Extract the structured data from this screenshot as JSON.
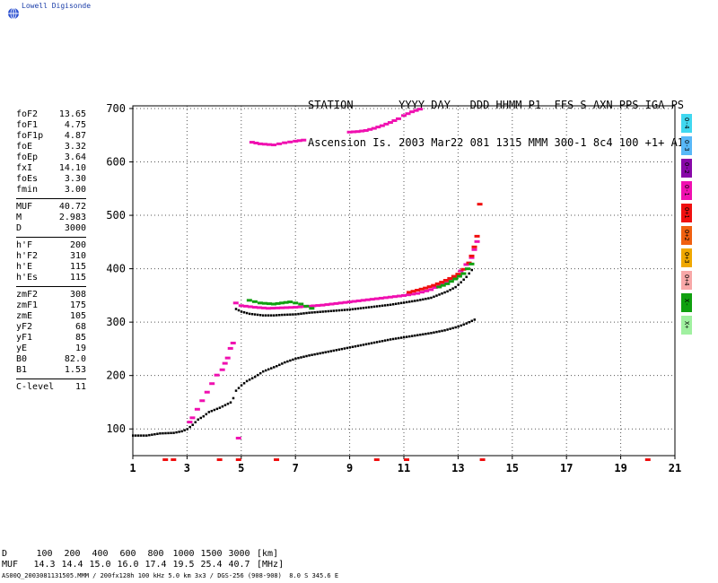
{
  "logo": {
    "text": "Lowell Digisonde"
  },
  "header": {
    "line1": "STATION       YYYY DAY   DDD HHMM P1  FFS S AXN PPS IGA PS",
    "line2": "Ascension Is. 2003 Mar22 081 1315 MMM 300-1 8c4 100 +1+ A1"
  },
  "params": {
    "groups": [
      [
        [
          "foF2",
          "13.65"
        ],
        [
          "foF1",
          "4.75"
        ],
        [
          "foF1p",
          "4.87"
        ],
        [
          "foE",
          "3.32"
        ],
        [
          "foEp",
          "3.64"
        ],
        [
          "fxI",
          "14.10"
        ],
        [
          "foEs",
          "3.30"
        ],
        [
          "fmin",
          "3.00"
        ]
      ],
      [
        [
          "MUF",
          "40.72"
        ],
        [
          "M",
          "2.983"
        ],
        [
          "D",
          "3000"
        ]
      ],
      [
        [
          "h'F",
          "200"
        ],
        [
          "h'F2",
          "310"
        ],
        [
          "h'E",
          "115"
        ],
        [
          "h'Es",
          "115"
        ]
      ],
      [
        [
          "zmF2",
          "308"
        ],
        [
          "zmF1",
          "175"
        ],
        [
          "zmE",
          "105"
        ],
        [
          "yF2",
          "68"
        ],
        [
          "yF1",
          "85"
        ],
        [
          "yE",
          "19"
        ],
        [
          "B0",
          "82.0"
        ],
        [
          "B1",
          "1.53"
        ]
      ],
      [
        [
          "C-level",
          "11"
        ]
      ]
    ]
  },
  "legend": {
    "items": [
      {
        "label": "O-4",
        "color": "#40d8f0"
      },
      {
        "label": "O-3",
        "color": "#58b8f8"
      },
      {
        "label": "O-2",
        "color": "#8808a8"
      },
      {
        "label": "O-1",
        "color": "#f010b0"
      },
      {
        "label": "O+1",
        "color": "#f01010"
      },
      {
        "label": "O+2",
        "color": "#f06010"
      },
      {
        "label": "O+3",
        "color": "#f0a800"
      },
      {
        "label": "O+4",
        "color": "#f8a8a8"
      },
      {
        "label": "X-",
        "color": "#10a010"
      },
      {
        "label": "X+",
        "color": "#a0f0a0"
      }
    ]
  },
  "bottom": {
    "d_label": "D",
    "d_values": [
      "100",
      "200",
      "400",
      "600",
      "800",
      "1000",
      "1500",
      "3000"
    ],
    "d_unit": "[km]",
    "muf_label": "MUF",
    "muf_values": [
      "14.3",
      "14.4",
      "15.0",
      "16.0",
      "17.4",
      "19.5",
      "25.4",
      "40.7"
    ],
    "muf_unit": "[MHz]"
  },
  "footer": {
    "text": "AS00Q_2003081131505.MMM / 200fx128h 100 kHz 5.0 km 3x3 / DGS-256 (908-908)  8.0 S 345.6 E"
  },
  "chart_data": {
    "type": "scatter",
    "xlim": [
      1,
      21
    ],
    "ylim": [
      50,
      705
    ],
    "x_ticks": [
      1,
      3,
      5,
      7,
      9,
      11,
      13,
      15,
      17,
      19,
      21
    ],
    "y_ticks": [
      100,
      200,
      300,
      400,
      500,
      600,
      700
    ],
    "grid": true,
    "colors": {
      "trace": "#000000",
      "pink": "#f010b0",
      "red": "#f01010",
      "green": "#10a010",
      "axis_marks": "#f01010"
    },
    "series": [
      {
        "key": "profile",
        "color_key": "trace",
        "points": [
          [
            1.0,
            88
          ],
          [
            1.5,
            88
          ],
          [
            2.0,
            92
          ],
          [
            2.5,
            93
          ],
          [
            2.8,
            96
          ],
          [
            3.0,
            100
          ],
          [
            3.2,
            108
          ],
          [
            3.4,
            118
          ],
          [
            3.6,
            124
          ],
          [
            3.8,
            132
          ],
          [
            4.0,
            136
          ],
          [
            4.2,
            140
          ],
          [
            4.4,
            145
          ],
          [
            4.6,
            150
          ],
          [
            4.7,
            158
          ],
          [
            4.8,
            172
          ],
          [
            5.0,
            182
          ],
          [
            5.2,
            190
          ],
          [
            5.5,
            198
          ],
          [
            5.8,
            208
          ],
          [
            6.0,
            212
          ],
          [
            6.3,
            218
          ],
          [
            6.6,
            225
          ],
          [
            7.0,
            232
          ],
          [
            7.5,
            238
          ],
          [
            8.0,
            243
          ],
          [
            8.5,
            248
          ],
          [
            9.0,
            253
          ],
          [
            9.5,
            258
          ],
          [
            10.0,
            263
          ],
          [
            10.5,
            268
          ],
          [
            11.0,
            272
          ],
          [
            11.5,
            276
          ],
          [
            12.0,
            280
          ],
          [
            12.5,
            285
          ],
          [
            13.0,
            292
          ],
          [
            13.3,
            298
          ],
          [
            13.6,
            305
          ]
        ]
      },
      {
        "key": "f_trace",
        "color_key": "trace",
        "points": [
          [
            4.8,
            325
          ],
          [
            5.0,
            320
          ],
          [
            5.3,
            316
          ],
          [
            5.8,
            313
          ],
          [
            6.2,
            313
          ],
          [
            6.5,
            314
          ],
          [
            7.0,
            315
          ],
          [
            7.5,
            318
          ],
          [
            8.0,
            320
          ],
          [
            8.5,
            322
          ],
          [
            9.0,
            324
          ],
          [
            9.5,
            327
          ],
          [
            10.0,
            330
          ],
          [
            10.5,
            333
          ],
          [
            11.0,
            337
          ],
          [
            11.5,
            341
          ],
          [
            12.0,
            346
          ],
          [
            12.3,
            352
          ],
          [
            12.6,
            358
          ],
          [
            12.9,
            366
          ],
          [
            13.1,
            375
          ],
          [
            13.3,
            385
          ],
          [
            13.5,
            398
          ]
        ]
      },
      {
        "key": "pink_f",
        "color_key": "pink",
        "points": [
          [
            4.8,
            335
          ],
          [
            5.0,
            330
          ],
          [
            5.5,
            327
          ],
          [
            6.0,
            325
          ],
          [
            6.5,
            326
          ],
          [
            7.0,
            327
          ],
          [
            7.5,
            329
          ],
          [
            8.0,
            331
          ],
          [
            8.5,
            334
          ],
          [
            9.0,
            337
          ],
          [
            9.5,
            340
          ],
          [
            10.0,
            343
          ],
          [
            10.5,
            346
          ],
          [
            11.0,
            349
          ],
          [
            11.5,
            353
          ],
          [
            12.0,
            360
          ],
          [
            12.3,
            368
          ],
          [
            12.6,
            376
          ],
          [
            12.9,
            385
          ],
          [
            13.1,
            395
          ],
          [
            13.3,
            407
          ],
          [
            13.5,
            420
          ],
          [
            13.6,
            435
          ],
          [
            13.7,
            450
          ]
        ]
      },
      {
        "key": "red_f",
        "color_key": "red",
        "points": [
          [
            11.2,
            355
          ],
          [
            11.5,
            359
          ],
          [
            11.8,
            363
          ],
          [
            12.1,
            368
          ],
          [
            12.4,
            374
          ],
          [
            12.7,
            381
          ],
          [
            13.0,
            389
          ],
          [
            13.2,
            398
          ],
          [
            13.4,
            410
          ],
          [
            13.5,
            423
          ],
          [
            13.6,
            440
          ],
          [
            13.7,
            460
          ],
          [
            13.8,
            520
          ]
        ]
      },
      {
        "key": "green_f",
        "color_key": "green",
        "points": [
          [
            5.3,
            340
          ],
          [
            5.7,
            335
          ],
          [
            6.2,
            333
          ],
          [
            6.8,
            337
          ],
          [
            7.2,
            333
          ],
          [
            7.6,
            325
          ],
          [
            12.3,
            365
          ],
          [
            12.6,
            371
          ],
          [
            12.9,
            380
          ],
          [
            13.2,
            390
          ],
          [
            13.5,
            408
          ]
        ]
      },
      {
        "key": "pink_high",
        "color_key": "pink",
        "points": [
          [
            5.4,
            636
          ],
          [
            5.7,
            633
          ],
          [
            6.2,
            631
          ],
          [
            6.6,
            635
          ],
          [
            7.0,
            638
          ],
          [
            7.3,
            640
          ],
          [
            9.0,
            655
          ],
          [
            9.3,
            656
          ],
          [
            9.6,
            658
          ],
          [
            9.9,
            662
          ],
          [
            10.2,
            667
          ],
          [
            10.5,
            673
          ],
          [
            10.8,
            680
          ],
          [
            11.0,
            686
          ],
          [
            11.3,
            693
          ],
          [
            11.6,
            698
          ]
        ]
      },
      {
        "key": "e_layer",
        "color_key": "pink",
        "points": [
          [
            3.1,
            112
          ],
          [
            3.2,
            120
          ],
          [
            4.1,
            200
          ],
          [
            4.3,
            210
          ],
          [
            4.4,
            222
          ],
          [
            4.5,
            232
          ],
          [
            4.6,
            250
          ],
          [
            4.7,
            260
          ],
          [
            4.9,
            82
          ]
        ]
      }
    ]
  }
}
